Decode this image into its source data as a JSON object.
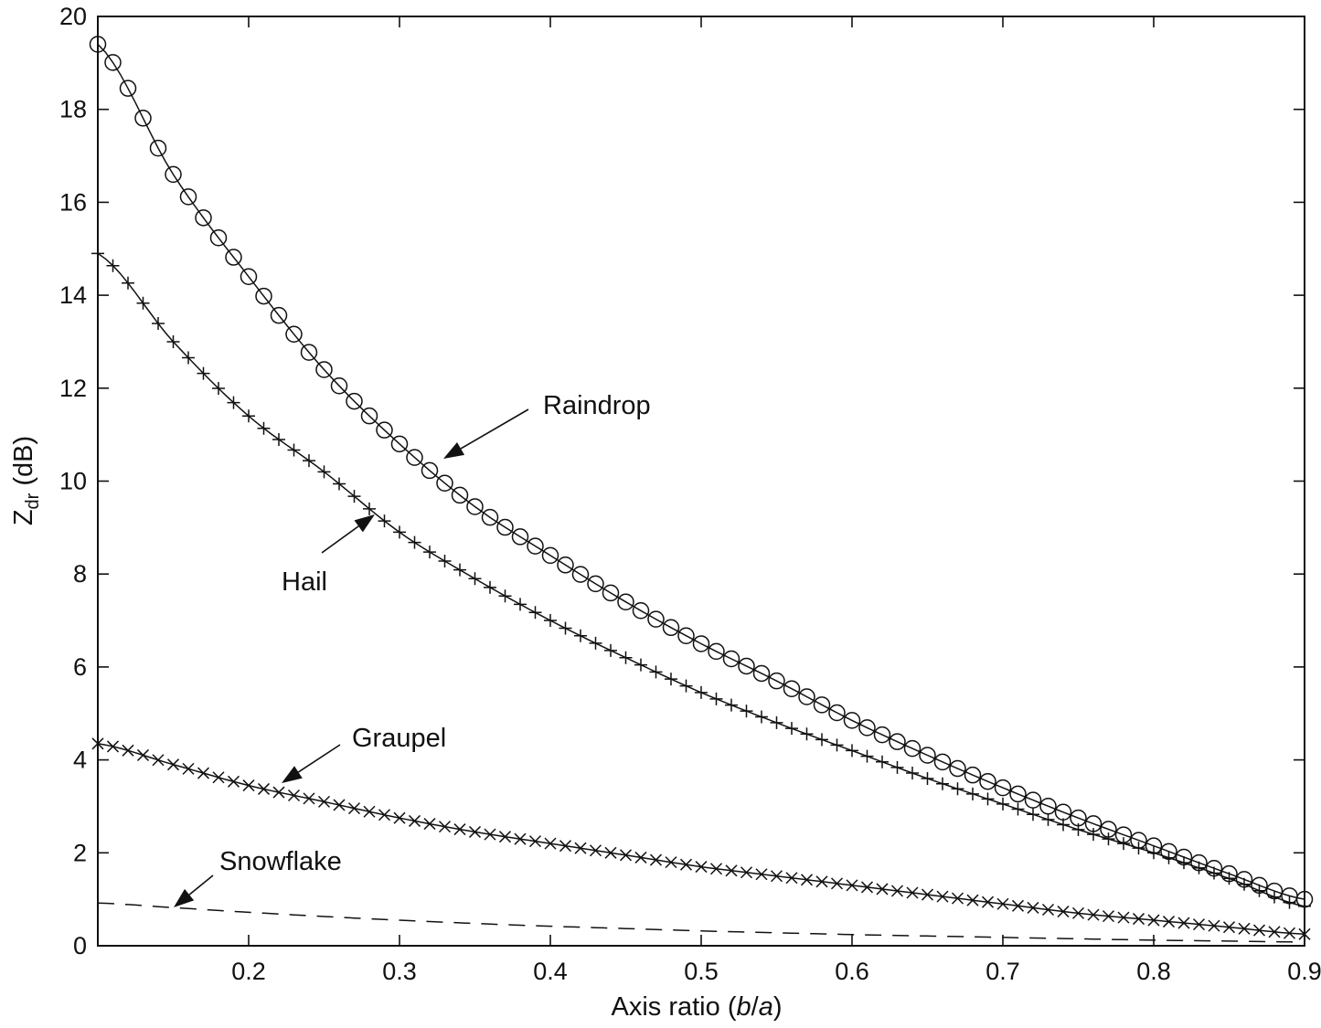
{
  "chart_data": {
    "type": "line",
    "title": "",
    "xlabel": {
      "prefix": "Axis ratio (",
      "var1": "b",
      "sep": "/",
      "var2": "a",
      "suffix": ")"
    },
    "ylabel": {
      "main": "Z",
      "sub": "dr",
      "suffix": " (dB)"
    },
    "xlim": [
      0.1,
      0.9
    ],
    "ylim": [
      0,
      20
    ],
    "x_ticks": [
      0.2,
      0.3,
      0.4,
      0.5,
      0.6,
      0.7,
      0.8,
      0.9
    ],
    "x_tick_labels": [
      "0.2",
      "0.3",
      "0.4",
      "0.5",
      "0.6",
      "0.7",
      "0.8",
      "0.9"
    ],
    "y_ticks": [
      0,
      2,
      4,
      6,
      8,
      10,
      12,
      14,
      16,
      18,
      20
    ],
    "y_tick_labels": [
      "0",
      "2",
      "4",
      "6",
      "8",
      "10",
      "12",
      "14",
      "16",
      "18",
      "20"
    ],
    "grid": false,
    "legend": "none",
    "x": [
      0.1,
      0.15,
      0.2,
      0.25,
      0.3,
      0.35,
      0.4,
      0.45,
      0.5,
      0.55,
      0.6,
      0.65,
      0.7,
      0.75,
      0.8,
      0.85,
      0.9
    ],
    "series": [
      {
        "name": "Raindrop",
        "marker": "circle",
        "line": "solid",
        "values": [
          19.4,
          16.6,
          14.4,
          12.4,
          10.8,
          9.45,
          8.4,
          7.4,
          6.5,
          5.7,
          4.85,
          4.1,
          3.4,
          2.75,
          2.15,
          1.55,
          1.0
        ]
      },
      {
        "name": "Hail",
        "marker": "plus",
        "line": "solid",
        "values": [
          14.9,
          13.0,
          11.4,
          10.2,
          8.9,
          7.9,
          7.0,
          6.2,
          5.45,
          4.8,
          4.2,
          3.6,
          3.05,
          2.5,
          2.0,
          1.45,
          0.85
        ]
      },
      {
        "name": "Graupel",
        "marker": "cross",
        "line": "solid",
        "values": [
          4.35,
          3.9,
          3.45,
          3.1,
          2.75,
          2.45,
          2.2,
          1.95,
          1.7,
          1.5,
          1.3,
          1.1,
          0.9,
          0.7,
          0.55,
          0.4,
          0.25
        ]
      },
      {
        "name": "Snowflake",
        "marker": "none",
        "line": "dashed",
        "values": [
          0.92,
          0.82,
          0.72,
          0.63,
          0.55,
          0.48,
          0.42,
          0.37,
          0.32,
          0.28,
          0.24,
          0.21,
          0.18,
          0.15,
          0.12,
          0.1,
          0.08
        ]
      }
    ],
    "annotations": [
      {
        "text": "Raindrop",
        "series": "Raindrop"
      },
      {
        "text": "Hail",
        "series": "Hail"
      },
      {
        "text": "Graupel",
        "series": "Graupel"
      },
      {
        "text": "Snowflake",
        "series": "Snowflake"
      }
    ]
  }
}
